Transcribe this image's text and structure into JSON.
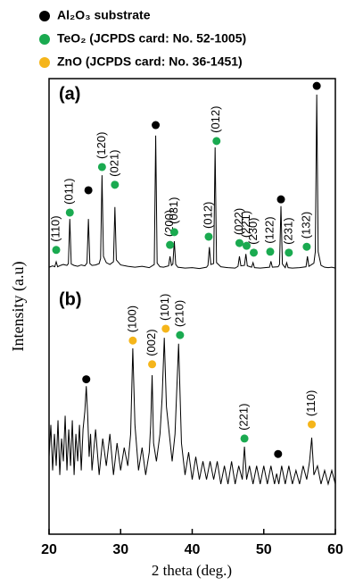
{
  "chart_data": {
    "type": "line",
    "x_label": "2 theta (deg.)",
    "y_label": "Intensity (a.u)",
    "xlim": [
      20,
      60
    ],
    "xticks": [
      20,
      30,
      40,
      50,
      60
    ],
    "ylim": [
      0,
      100
    ],
    "legend": [
      {
        "name": "Al₂O₃ substrate",
        "color": "#000000"
      },
      {
        "name": "TeO₂ (JCPDS card: No. 52-1005)",
        "color": "#1aaa50"
      },
      {
        "name": "ZnO (JCPDS card: No. 36-1451)",
        "color": "#f5b51a"
      }
    ],
    "series": [
      {
        "panel_label": "(a)",
        "color": "#000000",
        "x": [
          20,
          20.5,
          20.8,
          21.0,
          21.2,
          21.6,
          22.0,
          22.5,
          22.7,
          22.9,
          23.1,
          23.5,
          24.0,
          24.5,
          25.0,
          25.3,
          25.5,
          25.7,
          26.0,
          26.5,
          27.0,
          27.2,
          27.4,
          27.6,
          28.0,
          28.5,
          29.0,
          29.2,
          29.4,
          30.0,
          31.0,
          32.0,
          33.0,
          34.0,
          34.7,
          34.9,
          35.1,
          35.5,
          36.0,
          36.7,
          36.9,
          37.1,
          37.3,
          37.5,
          37.7,
          38.0,
          39.0,
          40.0,
          41.0,
          42.0,
          42.2,
          42.4,
          42.6,
          43.0,
          43.2,
          43.4,
          44.0,
          45.0,
          46.0,
          46.4,
          46.6,
          46.8,
          47.3,
          47.5,
          47.7,
          48.3,
          48.5,
          48.7,
          49.5,
          50.8,
          51.0,
          51.2,
          52.0,
          52.2,
          52.4,
          52.6,
          53.0,
          53.2,
          53.4,
          54.0,
          55.0,
          55.9,
          56.1,
          56.3,
          57.0,
          57.2,
          57.4,
          57.6,
          58.0,
          58.5,
          59.0,
          59.5,
          60.0
        ],
        "values": [
          58.6,
          58.9,
          58.7,
          59.8,
          58.7,
          59.0,
          59.2,
          59.0,
          59.4,
          69.2,
          59.3,
          59.0,
          58.8,
          59.1,
          58.9,
          59.5,
          69.2,
          59.4,
          59.0,
          59.1,
          59.4,
          60.5,
          78.8,
          61.0,
          59.6,
          59.2,
          59.8,
          71.8,
          60.2,
          59.1,
          58.8,
          58.6,
          58.8,
          58.5,
          59.2,
          87.5,
          59.5,
          58.7,
          58.6,
          58.9,
          61.0,
          59.0,
          59.3,
          64.3,
          59.2,
          58.6,
          58.4,
          58.5,
          58.3,
          58.6,
          59.0,
          63.0,
          59.2,
          59.4,
          84.9,
          59.6,
          58.7,
          58.5,
          58.4,
          58.8,
          61.0,
          58.9,
          59.0,
          61.5,
          58.9,
          58.6,
          59.6,
          58.5,
          58.4,
          58.6,
          59.9,
          58.6,
          58.7,
          59.2,
          72.0,
          59.3,
          58.5,
          59.6,
          58.5,
          58.4,
          58.5,
          58.7,
          61.0,
          58.8,
          59.5,
          62.0,
          96.5,
          62.0,
          59.0,
          58.6,
          58.5,
          58.6,
          58.4
        ],
        "markers": [
          {
            "x": 21.0,
            "y": 62.4,
            "phase": 1,
            "label": "(110)"
          },
          {
            "x": 22.9,
            "y": 70.6,
            "phase": 1,
            "label": "(011)"
          },
          {
            "x": 25.5,
            "y": 75.5,
            "phase": 0
          },
          {
            "x": 27.4,
            "y": 80.6,
            "phase": 1,
            "label": "(120)"
          },
          {
            "x": 29.2,
            "y": 76.7,
            "phase": 1,
            "label": "(021)"
          },
          {
            "x": 34.9,
            "y": 89.8,
            "phase": 0
          },
          {
            "x": 36.9,
            "y": 63.5,
            "phase": 1,
            "label": "(200)"
          },
          {
            "x": 37.5,
            "y": 66.3,
            "phase": 1,
            "label": "(031)"
          },
          {
            "x": 42.3,
            "y": 65.3,
            "phase": 1,
            "label": "(012)"
          },
          {
            "x": 43.4,
            "y": 86.3,
            "phase": 1,
            "label": "(012)"
          },
          {
            "x": 46.6,
            "y": 63.9,
            "phase": 1,
            "label": "(022)"
          },
          {
            "x": 47.6,
            "y": 63.3,
            "phase": 1,
            "label": "(221)"
          },
          {
            "x": 48.6,
            "y": 61.8,
            "phase": 1,
            "label": "(230)"
          },
          {
            "x": 50.9,
            "y": 62.0,
            "phase": 1,
            "label": "(122)"
          },
          {
            "x": 52.4,
            "y": 73.5,
            "phase": 0
          },
          {
            "x": 53.5,
            "y": 61.8,
            "phase": 1,
            "label": "(231)"
          },
          {
            "x": 56.0,
            "y": 63.1,
            "phase": 1,
            "label": "(132)"
          },
          {
            "x": 57.4,
            "y": 98.4,
            "phase": 0
          }
        ]
      },
      {
        "panel_label": "(b)",
        "color": "#000000",
        "x": [
          20,
          20.25,
          20.5,
          20.75,
          21,
          21.25,
          21.5,
          21.75,
          22,
          22.25,
          22.5,
          22.75,
          23,
          23.25,
          23.5,
          23.75,
          24,
          24.25,
          24.5,
          24.75,
          25,
          25.2,
          25.4,
          25.6,
          25.8,
          26,
          26.5,
          27,
          27.5,
          28,
          28.5,
          29,
          29.5,
          30,
          30.5,
          31,
          31.4,
          31.7,
          32.0,
          32.5,
          33,
          33.5,
          34,
          34.2,
          34.4,
          34.6,
          35,
          35.5,
          35.8,
          36.1,
          36.4,
          36.8,
          37.2,
          37.6,
          38.1,
          38.5,
          39,
          39.5,
          40,
          40.5,
          41,
          41.5,
          42,
          42.5,
          43,
          43.5,
          44,
          44.5,
          45,
          45.5,
          46,
          46.5,
          47,
          47.3,
          47.6,
          48,
          48.5,
          49,
          49.5,
          50,
          50.5,
          51,
          51.5,
          51.8,
          52.1,
          52.5,
          53,
          53.5,
          54,
          54.5,
          55,
          55.5,
          56,
          56.4,
          56.7,
          57,
          57.5,
          58,
          58.5,
          59,
          59.5,
          60
        ],
        "values": [
          17,
          24,
          14,
          22,
          15,
          25,
          13,
          21,
          16,
          26,
          14,
          23,
          15,
          25,
          13,
          22,
          16,
          24,
          14,
          23,
          27,
          32.5,
          26,
          17,
          22,
          14,
          23,
          13,
          21,
          15,
          22,
          13,
          20,
          14,
          19,
          15,
          22,
          40.8,
          24,
          14,
          19,
          13,
          18,
          24,
          34.9,
          20,
          16,
          22,
          30,
          43.1,
          28,
          22,
          16,
          22,
          41.8,
          20,
          13,
          18,
          12,
          17,
          12,
          16,
          12,
          16,
          12,
          16,
          11,
          15,
          11,
          16,
          11,
          15,
          12,
          19.2,
          12,
          15,
          11,
          15,
          11,
          15,
          11,
          15,
          11,
          13.3,
          11,
          15,
          11,
          15,
          11,
          14,
          11,
          15,
          12,
          16,
          21.2,
          13,
          15,
          11,
          14,
          11,
          14,
          11
        ],
        "markers": [
          {
            "x": 25.2,
            "y": 34.0,
            "phase": 0
          },
          {
            "x": 31.7,
            "y": 42.5,
            "phase": 2,
            "label": "(100)"
          },
          {
            "x": 34.4,
            "y": 37.3,
            "phase": 2,
            "label": "(002)"
          },
          {
            "x": 36.3,
            "y": 45.1,
            "phase": 2,
            "label": "(101)"
          },
          {
            "x": 38.3,
            "y": 43.7,
            "phase": 1,
            "label": "(210)"
          },
          {
            "x": 47.3,
            "y": 21.0,
            "phase": 1,
            "label": "(221)"
          },
          {
            "x": 52.0,
            "y": 17.6,
            "phase": 0
          },
          {
            "x": 56.7,
            "y": 24.1,
            "phase": 2,
            "label": "(110)"
          }
        ]
      }
    ]
  }
}
